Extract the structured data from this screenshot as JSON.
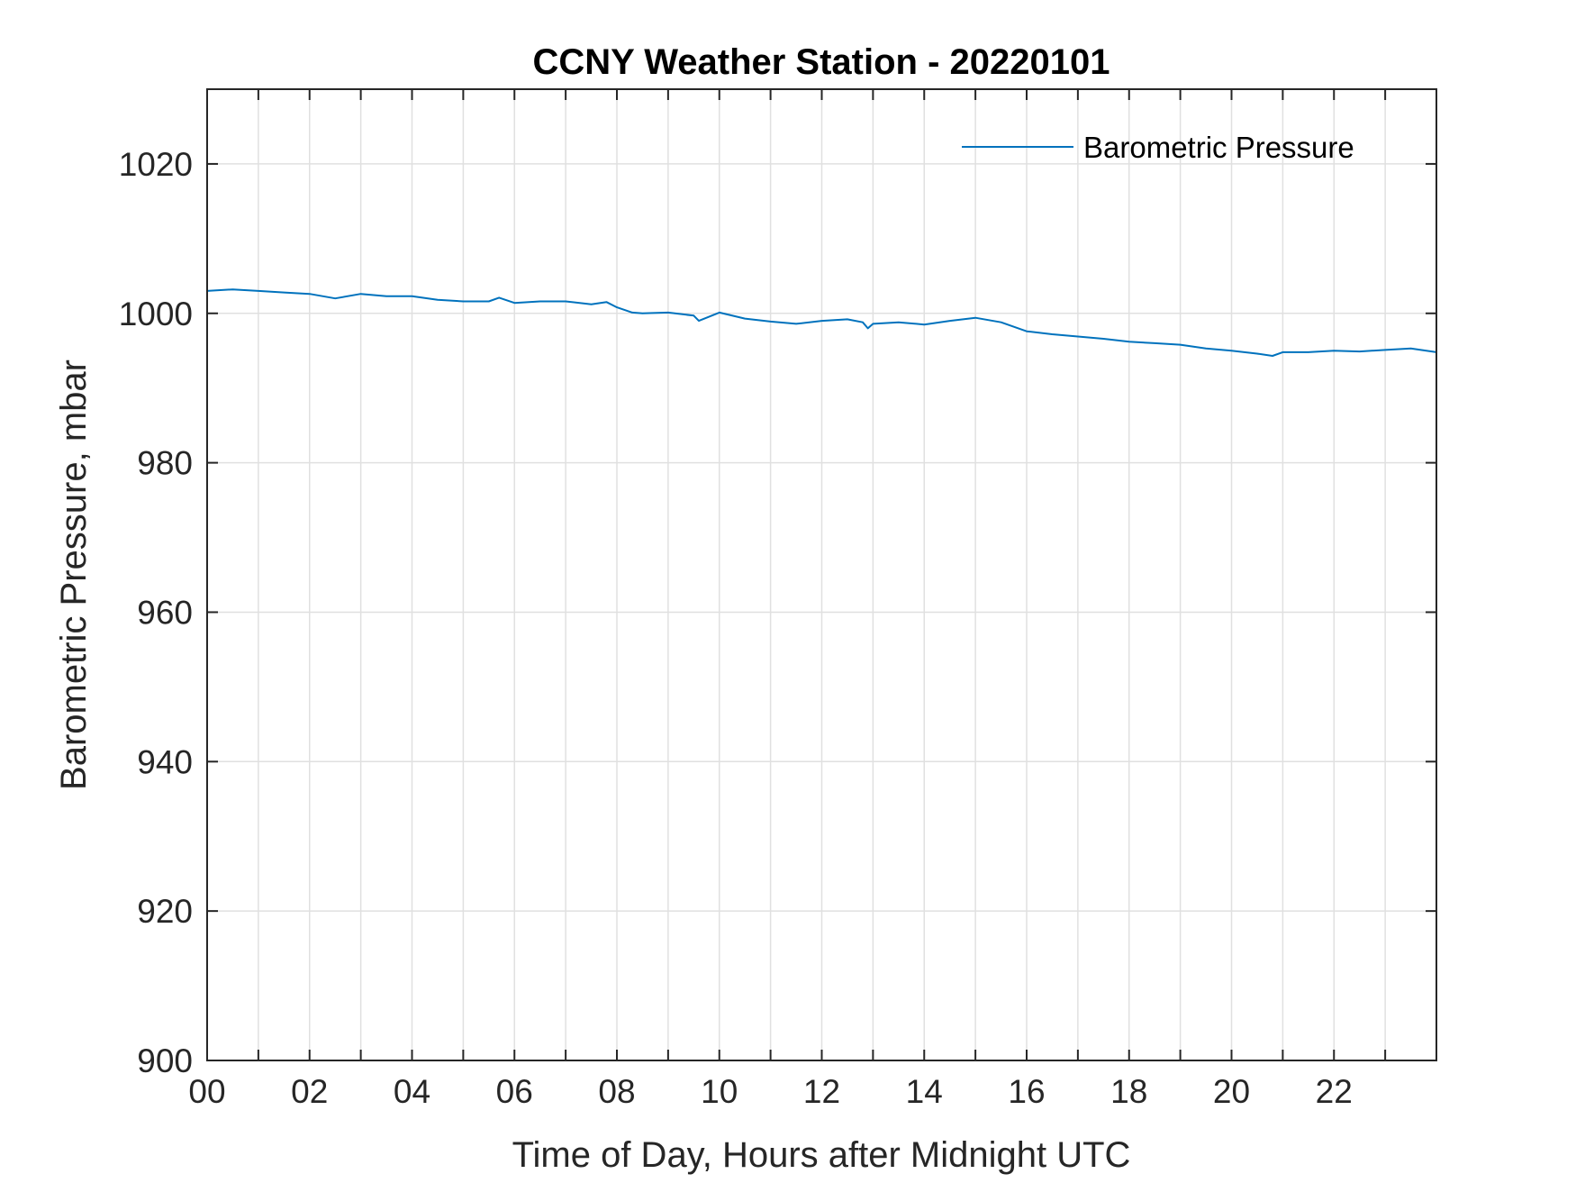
{
  "chart_data": {
    "type": "line",
    "title": "CCNY Weather Station - 20220101",
    "xlabel": "Time of Day, Hours after Midnight UTC",
    "ylabel": "Barometric Pressure, mbar",
    "xlim": [
      0,
      24
    ],
    "ylim": [
      900,
      1030
    ],
    "grid": true,
    "legend_position": "top-right",
    "x_ticks": [
      0,
      2,
      4,
      6,
      8,
      10,
      12,
      14,
      16,
      18,
      20,
      22
    ],
    "x_tick_labels": [
      "00",
      "02",
      "04",
      "06",
      "08",
      "10",
      "12",
      "14",
      "16",
      "18",
      "20",
      "22"
    ],
    "y_ticks": [
      900,
      920,
      940,
      960,
      980,
      1000,
      1020
    ],
    "y_tick_labels": [
      "900",
      "920",
      "940",
      "960",
      "980",
      "1000",
      "1020"
    ],
    "colors": {
      "series": "#0072bd",
      "axis": "#262626",
      "grid": "#e0e0e0"
    },
    "series": [
      {
        "name": "Barometric Pressure",
        "x": [
          0,
          0.5,
          1,
          1.5,
          2,
          2.5,
          3,
          3.5,
          4,
          4.5,
          5,
          5.5,
          5.7,
          6,
          6.5,
          7,
          7.5,
          7.8,
          8,
          8.3,
          8.5,
          9,
          9.5,
          9.6,
          10,
          10.5,
          11,
          11.5,
          12,
          12.5,
          12.8,
          12.9,
          13,
          13.5,
          14,
          14.5,
          15,
          15.5,
          16,
          16.5,
          17,
          17.5,
          18,
          18.5,
          19,
          19.5,
          20,
          20.5,
          20.8,
          21,
          21.5,
          22,
          22.5,
          23,
          23.5,
          24
        ],
        "y": [
          1003.0,
          1003.2,
          1003.0,
          1002.8,
          1002.6,
          1002.0,
          1002.6,
          1002.3,
          1002.3,
          1001.8,
          1001.6,
          1001.6,
          1002.1,
          1001.4,
          1001.6,
          1001.6,
          1001.2,
          1001.5,
          1000.8,
          1000.1,
          1000.0,
          1000.1,
          999.7,
          999.0,
          1000.1,
          999.3,
          998.9,
          998.6,
          999.0,
          999.2,
          998.8,
          998.0,
          998.6,
          998.8,
          998.5,
          999.0,
          999.4,
          998.8,
          997.6,
          997.2,
          996.9,
          996.6,
          996.2,
          996.0,
          995.8,
          995.3,
          995.0,
          994.6,
          994.3,
          994.8,
          994.8,
          995.0,
          994.9,
          995.1,
          995.3,
          994.8
        ]
      }
    ]
  }
}
